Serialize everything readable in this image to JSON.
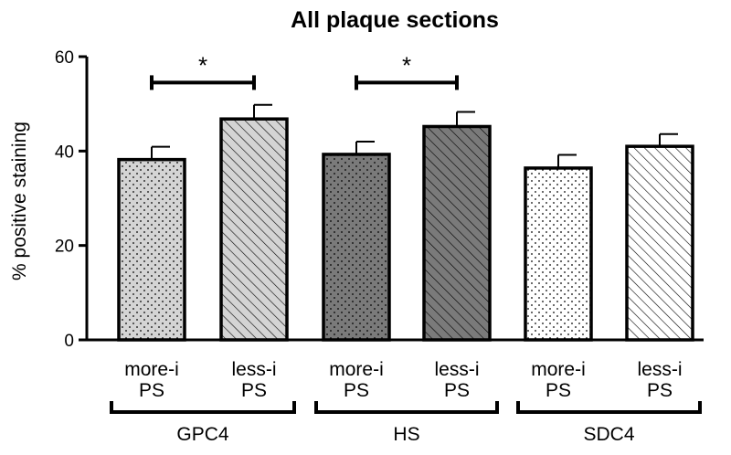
{
  "chart_data": {
    "type": "bar",
    "title": "All plaque sections",
    "ylabel": "% positive staining",
    "xlabel": "",
    "ylim": [
      0,
      60
    ],
    "yticks": [
      0,
      20,
      40,
      60
    ],
    "grid": false,
    "bars": [
      {
        "group": "GPC4",
        "label_line1": "more-i",
        "label_line2": "PS",
        "value": 38.2,
        "error": 2.7,
        "fill": "#d4d4d4",
        "pattern": "dots"
      },
      {
        "group": "GPC4",
        "label_line1": "less-i",
        "label_line2": "PS",
        "value": 46.8,
        "error": 3.0,
        "fill": "#d4d4d4",
        "pattern": "hatch"
      },
      {
        "group": "HS",
        "label_line1": "more-i",
        "label_line2": "PS",
        "value": 39.3,
        "error": 2.7,
        "fill": "#7a7a7a",
        "pattern": "dots"
      },
      {
        "group": "HS",
        "label_line1": "less-i",
        "label_line2": "PS",
        "value": 45.2,
        "error": 3.1,
        "fill": "#7a7a7a",
        "pattern": "hatch"
      },
      {
        "group": "SDC4",
        "label_line1": "more-i",
        "label_line2": "PS",
        "value": 36.4,
        "error": 2.8,
        "fill": "#ffffff",
        "pattern": "dots"
      },
      {
        "group": "SDC4",
        "label_line1": "less-i",
        "label_line2": "PS",
        "value": 41.0,
        "error": 2.6,
        "fill": "#ffffff",
        "pattern": "hatch"
      }
    ],
    "groups": [
      {
        "name": "GPC4",
        "bars": [
          0,
          1
        ]
      },
      {
        "name": "HS",
        "bars": [
          2,
          3
        ]
      },
      {
        "name": "SDC4",
        "bars": [
          4,
          5
        ]
      }
    ],
    "significance": [
      {
        "from": 0,
        "to": 1,
        "label": "*",
        "level": 54.5
      },
      {
        "from": 2,
        "to": 3,
        "label": "*",
        "level": 54.5
      }
    ]
  }
}
